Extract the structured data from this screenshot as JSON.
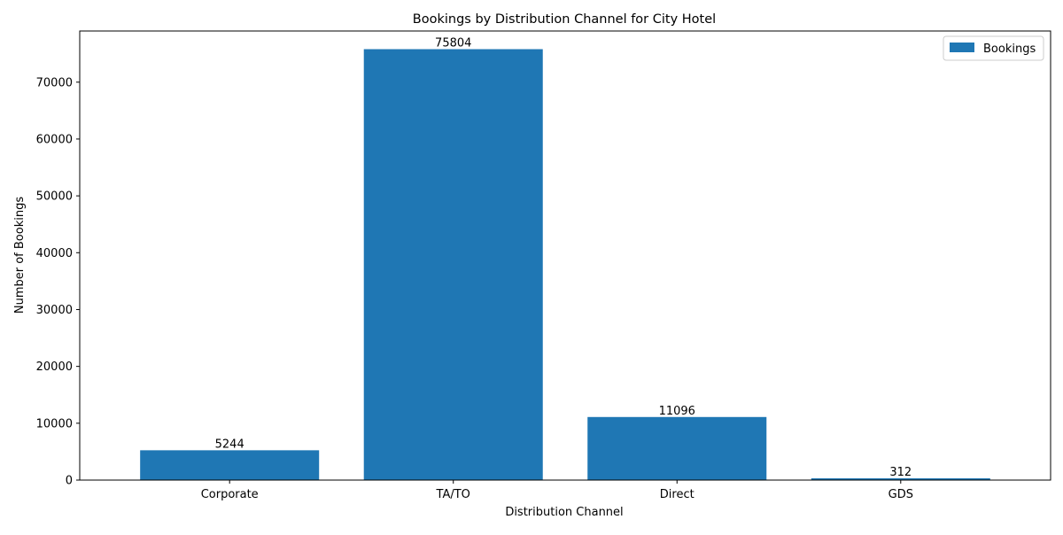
{
  "chart_data": {
    "type": "bar",
    "title": "Bookings by Distribution Channel for City Hotel",
    "xlabel": "Distribution Channel",
    "ylabel": "Number of Bookings",
    "categories": [
      "Corporate",
      "TA/TO",
      "Direct",
      "GDS"
    ],
    "series": [
      {
        "name": "Bookings",
        "values": [
          5244,
          75804,
          11096,
          312
        ]
      }
    ],
    "data_labels": [
      "5244",
      "75804",
      "11096",
      "312"
    ],
    "ylim": [
      0,
      79000
    ],
    "yticks": [
      0,
      10000,
      20000,
      30000,
      40000,
      50000,
      60000,
      70000
    ],
    "ytick_labels": [
      "0",
      "10000",
      "20000",
      "30000",
      "40000",
      "50000",
      "60000",
      "70000"
    ],
    "grid": false,
    "legend": {
      "position": "top-right",
      "entries": [
        "Bookings"
      ]
    },
    "colors": {
      "bar": "#1f77b4",
      "axis": "#000000",
      "legend_border": "#cccccc"
    }
  }
}
